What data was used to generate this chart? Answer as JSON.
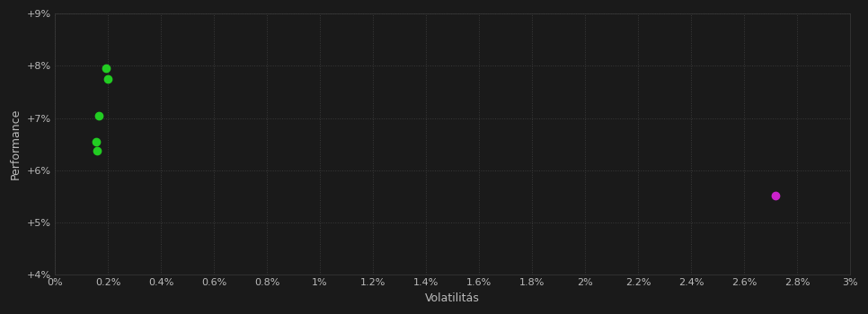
{
  "background_color": "#1a1a1a",
  "plot_bg_color": "#1a1a1a",
  "grid_color": "#3a3a3a",
  "text_color": "#bbbbbb",
  "xlabel": "Volatilitás",
  "ylabel": "Performance",
  "xlim": [
    0.0,
    0.03
  ],
  "ylim": [
    0.04,
    0.09
  ],
  "xtick_values": [
    0.0,
    0.002,
    0.004,
    0.006,
    0.008,
    0.01,
    0.012,
    0.014,
    0.016,
    0.018,
    0.02,
    0.022,
    0.024,
    0.026,
    0.028,
    0.03
  ],
  "xtick_labels": [
    "0%",
    "0.2%",
    "0.4%",
    "0.6%",
    "0.8%",
    "1%",
    "1.2%",
    "1.4%",
    "1.6%",
    "1.8%",
    "2%",
    "2.2%",
    "2.4%",
    "2.6%",
    "2.8%",
    "3%"
  ],
  "ytick_values": [
    0.04,
    0.05,
    0.06,
    0.07,
    0.08,
    0.09
  ],
  "ytick_labels": [
    "+4%",
    "+5%",
    "+6%",
    "+7%",
    "+8%",
    "+9%"
  ],
  "green_points": [
    [
      0.00195,
      0.0795
    ],
    [
      0.002,
      0.0775
    ],
    [
      0.00165,
      0.0705
    ],
    [
      0.00155,
      0.0655
    ],
    [
      0.0016,
      0.0638
    ]
  ],
  "magenta_points": [
    [
      0.0272,
      0.0552
    ]
  ],
  "green_color": "#22cc22",
  "magenta_color": "#cc22cc",
  "marker_size": 6,
  "font_size_labels": 9,
  "font_size_ticks": 8
}
